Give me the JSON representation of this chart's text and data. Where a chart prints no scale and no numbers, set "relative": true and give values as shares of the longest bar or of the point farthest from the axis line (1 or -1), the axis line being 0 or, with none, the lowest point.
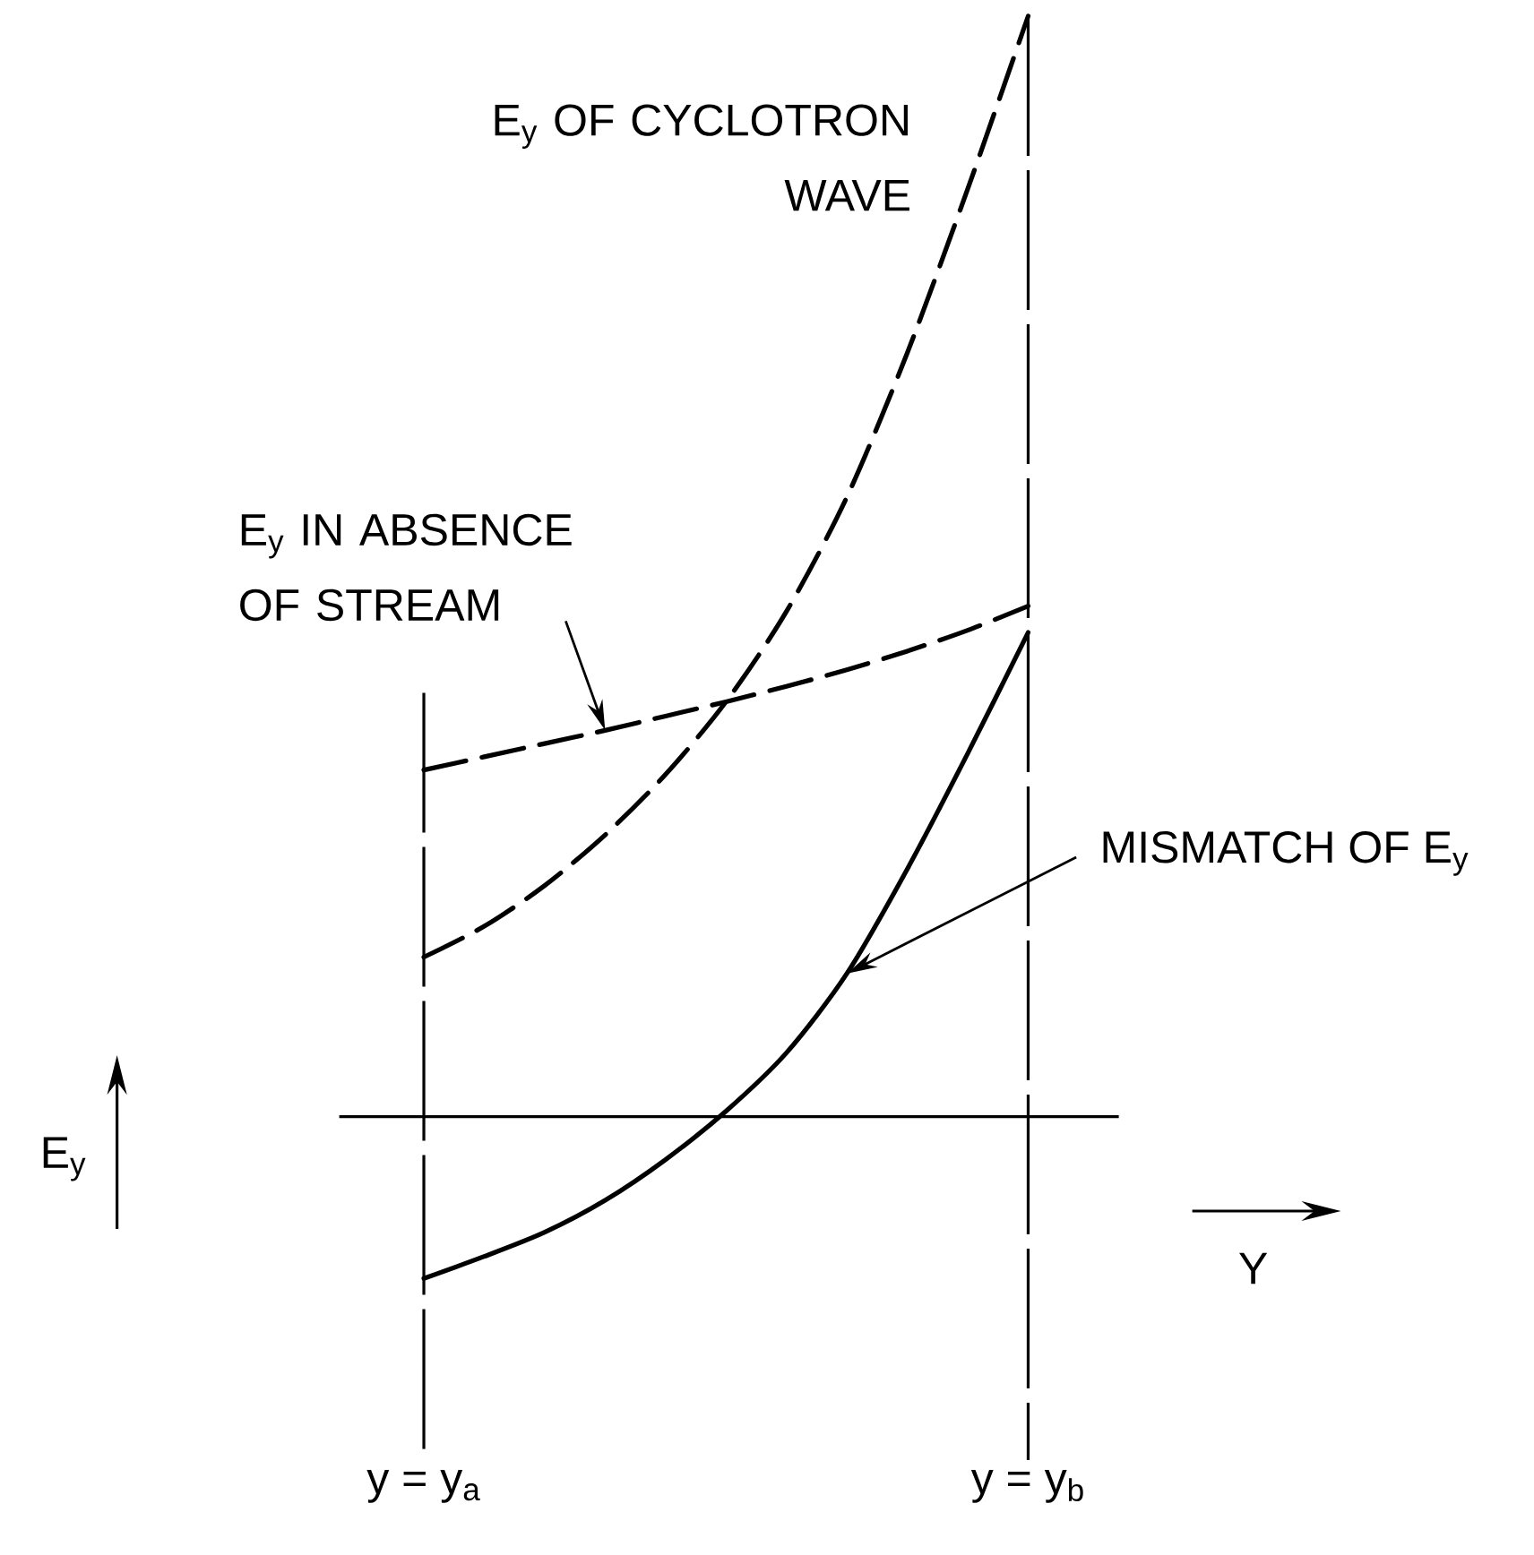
{
  "chart_data": {
    "type": "line",
    "relative": true,
    "xlabel": "Y",
    "annotations": [
      "E$_{y}$"
    ],
    "categories": [
      "y = y$_{a}$",
      null,
      null,
      null,
      null,
      null,
      null,
      null,
      null,
      null,
      "y = y$_{b}$"
    ],
    "grid": "x",
    "series": [
      {
        "name": "E$_{y}$ OF CYCLOTRON WAVE",
        "color": "#000000",
        "line_style": "dashed",
        "values": [
          0.145,
          0.173,
          0.21,
          0.256,
          0.311,
          0.377,
          0.459,
          0.563,
          0.694,
          0.843,
          1
        ]
      },
      {
        "name": "E$_{y}$ IN ABSENCE OF STREAM",
        "color": "#000000",
        "line_style": "dashed",
        "values": [
          0.315,
          0.327,
          0.339,
          0.351,
          0.364,
          0.377,
          0.391,
          0.406,
          0.423,
          0.442,
          0.464
        ]
      },
      {
        "name": "MISMATCH OF E$_{y}$",
        "color": "#000000",
        "line_style": "solid",
        "values": [
          -0.147,
          -0.127,
          -0.105,
          -0.076,
          -0.039,
          0.005,
          0.058,
          0.13,
          0.225,
          0.33,
          0.44
        ]
      }
    ]
  }
}
